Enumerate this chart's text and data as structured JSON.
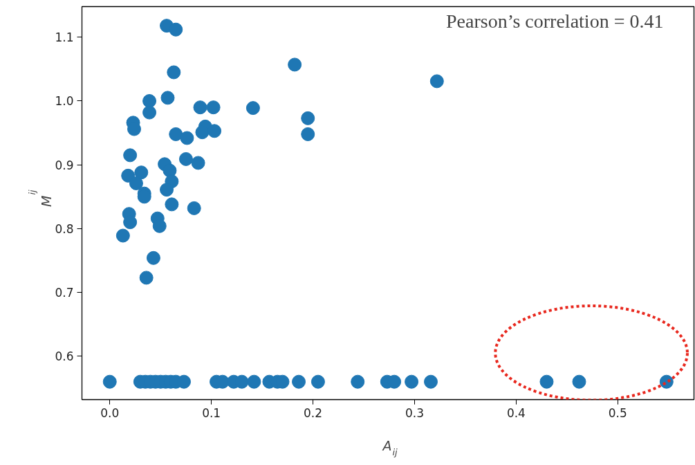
{
  "chart_data": {
    "type": "scatter",
    "xlabel": "A$_{ij}$",
    "ylabel": "M$_{ij}$",
    "annotations": [
      "Pearson’s correlation = 0.41"
    ],
    "xlim": [
      -0.0274,
      0.575
    ],
    "ylim": [
      0.532,
      1.148
    ],
    "xticks": [
      {
        "value": 0,
        "label": "0.0"
      },
      0.1,
      0.2,
      0.3,
      0.4,
      0.5
    ],
    "yticks": [
      0.6,
      0.7,
      0.8,
      0.9,
      {
        "value": 1,
        "label": "1.0"
      },
      1.1
    ],
    "grid": false,
    "marker": "circle",
    "series": [
      {
        "color": "#1f77b4",
        "x": [
          0.0,
          0.03,
          0.035,
          0.04,
          0.045,
          0.05,
          0.055,
          0.06,
          0.065,
          0.073,
          0.105,
          0.111,
          0.122,
          0.13,
          0.142,
          0.157,
          0.165,
          0.17,
          0.186,
          0.205,
          0.244,
          0.273,
          0.28,
          0.297,
          0.316,
          0.43,
          0.462,
          0.548,
          0.056,
          0.065,
          0.063,
          0.057,
          0.039,
          0.039,
          0.089,
          0.102,
          0.141,
          0.023,
          0.024,
          0.065,
          0.076,
          0.094,
          0.091,
          0.103,
          0.02,
          0.075,
          0.087,
          0.054,
          0.059,
          0.018,
          0.031,
          0.026,
          0.061,
          0.056,
          0.034,
          0.034,
          0.061,
          0.083,
          0.019,
          0.02,
          0.047,
          0.049,
          0.013,
          0.043,
          0.036,
          0.182,
          0.322,
          0.195,
          0.195
        ],
        "values": [
          0.56,
          0.56,
          0.56,
          0.56,
          0.56,
          0.56,
          0.56,
          0.56,
          0.56,
          0.56,
          0.56,
          0.56,
          0.56,
          0.56,
          0.56,
          0.56,
          0.56,
          0.56,
          0.56,
          0.56,
          0.56,
          0.56,
          0.56,
          0.56,
          0.56,
          0.56,
          0.56,
          0.56,
          1.118,
          1.112,
          1.045,
          1.005,
          1.0,
          0.982,
          0.99,
          0.99,
          0.989,
          0.966,
          0.956,
          0.948,
          0.942,
          0.96,
          0.951,
          0.953,
          0.915,
          0.909,
          0.903,
          0.901,
          0.891,
          0.883,
          0.888,
          0.871,
          0.874,
          0.861,
          0.855,
          0.85,
          0.838,
          0.832,
          0.823,
          0.81,
          0.816,
          0.804,
          0.789,
          0.754,
          0.723,
          1.057,
          1.031,
          0.973,
          0.948
        ]
      }
    ]
  }
}
